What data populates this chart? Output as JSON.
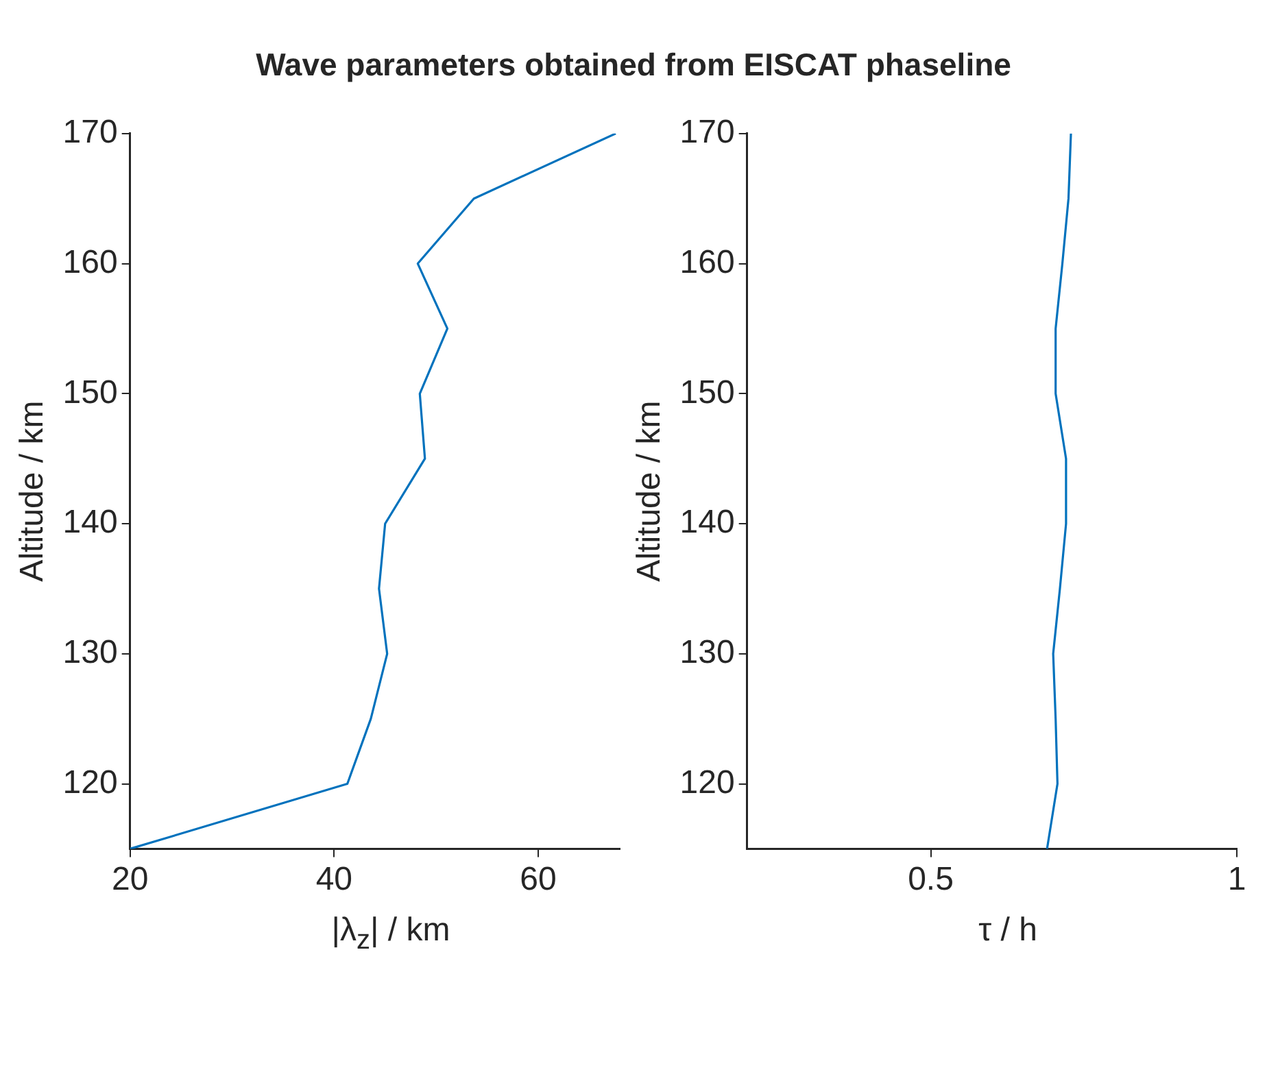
{
  "chart_data": [
    {
      "type": "line",
      "title": "Wave parameters obtained from EISCAT phaseline",
      "xlabel": "|λ$_{z}$| / km",
      "ylabel": "Altitude / km",
      "xlim": [
        20,
        68
      ],
      "xticks": [
        20,
        40,
        60
      ],
      "ylim": [
        115,
        170
      ],
      "yticks": [
        120,
        130,
        140,
        150,
        160,
        170
      ],
      "series": [
        {
          "color": "#0072bd",
          "x": [
            20,
            41.3,
            43.6,
            45.2,
            44.4,
            45.0,
            48.9,
            48.4,
            51.1,
            48.2,
            53.7,
            67.6
          ],
          "values": [
            115,
            120,
            125,
            130,
            135,
            140,
            145,
            150,
            155,
            160,
            165,
            170
          ]
        }
      ]
    },
    {
      "type": "line",
      "xlabel": "τ / h",
      "ylabel": "Altitude / km",
      "xlim": [
        0.2,
        1
      ],
      "xticks": [
        {
          "value": 0.5,
          "label": "0.5"
        },
        1
      ],
      "ylim": [
        115,
        170
      ],
      "yticks": [
        120,
        130,
        140,
        150,
        160,
        170
      ],
      "series": [
        {
          "color": "#0072bd",
          "x": [
            0.69,
            0.707,
            0.704,
            0.7,
            0.711,
            0.721,
            0.721,
            0.704,
            0.704,
            0.715,
            0.725,
            0.729
          ],
          "values": [
            115,
            120,
            125,
            130,
            135,
            140,
            145,
            150,
            155,
            160,
            165,
            170
          ]
        }
      ]
    }
  ]
}
